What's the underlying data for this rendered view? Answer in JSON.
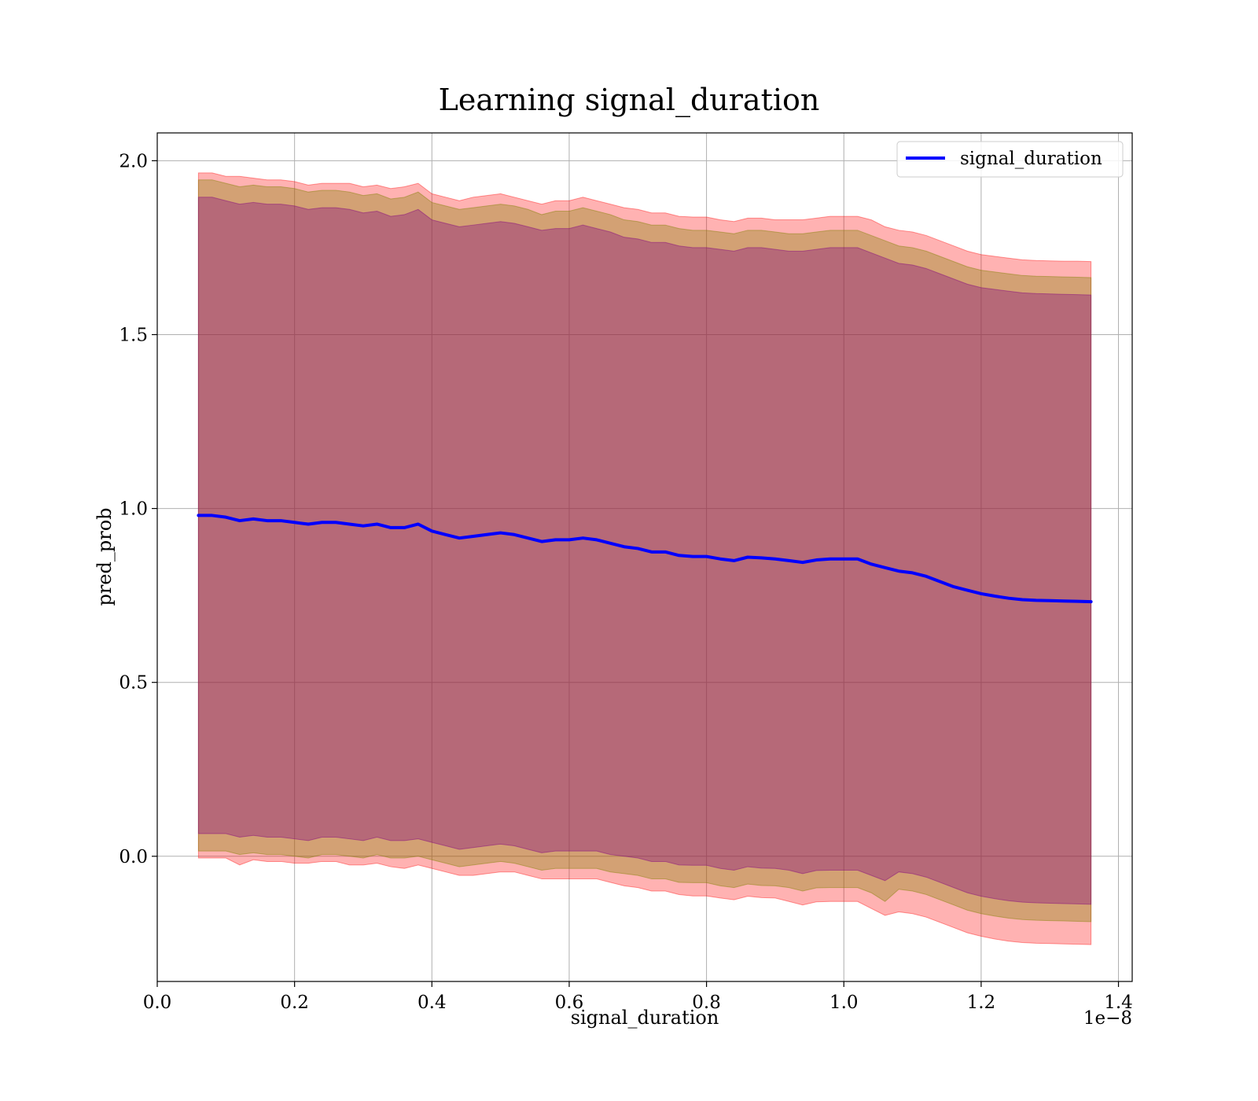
{
  "chart_data": {
    "type": "line",
    "title": "Learning signal_duration",
    "xlabel": "signal_duration",
    "ylabel": "pred_prob",
    "x_offset_label": "1e−8",
    "xlim": [
      0.0,
      1.42
    ],
    "ylim": [
      -0.36,
      2.08
    ],
    "x_ticks": [
      0.0,
      0.2,
      0.4,
      0.6,
      0.8,
      1.0,
      1.2,
      1.4
    ],
    "x_tick_labels": [
      "0.0",
      "0.2",
      "0.4",
      "0.6",
      "0.8",
      "1.0",
      "1.2",
      "1.4"
    ],
    "y_ticks": [
      0.0,
      0.5,
      1.0,
      1.5,
      2.0
    ],
    "y_tick_labels": [
      "0.0",
      "0.5",
      "1.0",
      "1.5",
      "2.0"
    ],
    "grid": true,
    "legend_position": "top-right",
    "series": [
      {
        "name": "signal_duration",
        "color": "#0000ff",
        "x": [
          0.06,
          0.08,
          0.1,
          0.12,
          0.14,
          0.16,
          0.18,
          0.2,
          0.22,
          0.24,
          0.26,
          0.28,
          0.3,
          0.32,
          0.34,
          0.36,
          0.38,
          0.4,
          0.42,
          0.44,
          0.46,
          0.48,
          0.5,
          0.52,
          0.54,
          0.56,
          0.58,
          0.6,
          0.62,
          0.64,
          0.66,
          0.68,
          0.7,
          0.72,
          0.74,
          0.76,
          0.78,
          0.8,
          0.82,
          0.84,
          0.86,
          0.88,
          0.9,
          0.92,
          0.94,
          0.96,
          0.98,
          1.0,
          1.02,
          1.04,
          1.06,
          1.08,
          1.1,
          1.12,
          1.14,
          1.16,
          1.18,
          1.2,
          1.22,
          1.24,
          1.26,
          1.28,
          1.3,
          1.32,
          1.34,
          1.36
        ],
        "y": [
          0.98,
          0.98,
          0.975,
          0.965,
          0.97,
          0.965,
          0.965,
          0.96,
          0.955,
          0.96,
          0.96,
          0.955,
          0.95,
          0.955,
          0.945,
          0.945,
          0.955,
          0.935,
          0.925,
          0.915,
          0.92,
          0.925,
          0.93,
          0.925,
          0.915,
          0.905,
          0.91,
          0.91,
          0.915,
          0.91,
          0.9,
          0.89,
          0.885,
          0.875,
          0.875,
          0.865,
          0.862,
          0.862,
          0.855,
          0.85,
          0.86,
          0.858,
          0.855,
          0.85,
          0.845,
          0.852,
          0.855,
          0.855,
          0.855,
          0.84,
          0.83,
          0.82,
          0.815,
          0.805,
          0.79,
          0.775,
          0.765,
          0.755,
          0.748,
          0.742,
          0.738,
          0.736,
          0.735,
          0.734,
          0.733,
          0.732
        ]
      }
    ],
    "bands": [
      {
        "color": "#ff0000",
        "opacity": 0.3,
        "upper": [
          1.965,
          1.965,
          1.955,
          1.955,
          1.95,
          1.945,
          1.945,
          1.94,
          1.93,
          1.935,
          1.935,
          1.935,
          1.925,
          1.93,
          1.92,
          1.925,
          1.935,
          1.905,
          1.895,
          1.885,
          1.895,
          1.9,
          1.905,
          1.895,
          1.885,
          1.875,
          1.885,
          1.885,
          1.895,
          1.885,
          1.875,
          1.865,
          1.86,
          1.85,
          1.85,
          1.84,
          1.838,
          1.838,
          1.83,
          1.825,
          1.835,
          1.835,
          1.83,
          1.83,
          1.83,
          1.835,
          1.84,
          1.84,
          1.84,
          1.83,
          1.81,
          1.8,
          1.795,
          1.785,
          1.77,
          1.755,
          1.74,
          1.73,
          1.725,
          1.72,
          1.715,
          1.713,
          1.712,
          1.711,
          1.711,
          1.71
        ],
        "lower": [
          -0.005,
          -0.005,
          -0.005,
          -0.025,
          -0.01,
          -0.015,
          -0.015,
          -0.02,
          -0.02,
          -0.015,
          -0.015,
          -0.025,
          -0.025,
          -0.02,
          -0.03,
          -0.035,
          -0.025,
          -0.035,
          -0.045,
          -0.055,
          -0.055,
          -0.05,
          -0.045,
          -0.045,
          -0.055,
          -0.065,
          -0.065,
          -0.065,
          -0.065,
          -0.065,
          -0.075,
          -0.085,
          -0.09,
          -0.1,
          -0.1,
          -0.11,
          -0.114,
          -0.114,
          -0.12,
          -0.125,
          -0.115,
          -0.119,
          -0.12,
          -0.13,
          -0.14,
          -0.131,
          -0.13,
          -0.13,
          -0.13,
          -0.15,
          -0.17,
          -0.16,
          -0.165,
          -0.175,
          -0.19,
          -0.205,
          -0.22,
          -0.23,
          -0.238,
          -0.244,
          -0.248,
          -0.25,
          -0.251,
          -0.252,
          -0.253,
          -0.254
        ]
      },
      {
        "color": "#808000",
        "opacity": 0.35,
        "upper": [
          1.945,
          1.945,
          1.935,
          1.925,
          1.93,
          1.925,
          1.925,
          1.92,
          1.91,
          1.915,
          1.915,
          1.91,
          1.9,
          1.905,
          1.89,
          1.895,
          1.91,
          1.88,
          1.87,
          1.86,
          1.865,
          1.87,
          1.875,
          1.87,
          1.86,
          1.845,
          1.855,
          1.855,
          1.865,
          1.855,
          1.845,
          1.83,
          1.825,
          1.815,
          1.815,
          1.805,
          1.8,
          1.8,
          1.795,
          1.79,
          1.8,
          1.8,
          1.795,
          1.79,
          1.79,
          1.795,
          1.8,
          1.8,
          1.8,
          1.785,
          1.77,
          1.755,
          1.75,
          1.74,
          1.725,
          1.71,
          1.695,
          1.685,
          1.68,
          1.675,
          1.67,
          1.668,
          1.667,
          1.666,
          1.665,
          1.664
        ],
        "lower": [
          0.015,
          0.015,
          0.015,
          0.005,
          0.01,
          0.005,
          0.005,
          0.0,
          -0.005,
          0.005,
          0.005,
          0.0,
          -0.005,
          0.005,
          -0.005,
          -0.005,
          0.0,
          -0.01,
          -0.02,
          -0.03,
          -0.025,
          -0.02,
          -0.015,
          -0.02,
          -0.03,
          -0.04,
          -0.035,
          -0.035,
          -0.035,
          -0.035,
          -0.045,
          -0.05,
          -0.055,
          -0.065,
          -0.065,
          -0.075,
          -0.076,
          -0.076,
          -0.085,
          -0.09,
          -0.08,
          -0.084,
          -0.085,
          -0.09,
          -0.1,
          -0.091,
          -0.09,
          -0.09,
          -0.09,
          -0.105,
          -0.13,
          -0.095,
          -0.1,
          -0.11,
          -0.125,
          -0.14,
          -0.155,
          -0.165,
          -0.172,
          -0.178,
          -0.182,
          -0.184,
          -0.185,
          -0.186,
          -0.187,
          -0.188
        ]
      },
      {
        "color": "#800080",
        "opacity": 0.35,
        "upper": [
          1.895,
          1.895,
          1.885,
          1.875,
          1.88,
          1.875,
          1.875,
          1.87,
          1.86,
          1.865,
          1.865,
          1.86,
          1.85,
          1.855,
          1.84,
          1.845,
          1.86,
          1.83,
          1.82,
          1.81,
          1.815,
          1.82,
          1.825,
          1.82,
          1.81,
          1.8,
          1.805,
          1.805,
          1.815,
          1.805,
          1.795,
          1.78,
          1.775,
          1.765,
          1.765,
          1.755,
          1.75,
          1.75,
          1.745,
          1.74,
          1.75,
          1.75,
          1.745,
          1.74,
          1.74,
          1.745,
          1.75,
          1.75,
          1.75,
          1.735,
          1.72,
          1.705,
          1.7,
          1.69,
          1.675,
          1.66,
          1.645,
          1.635,
          1.63,
          1.625,
          1.62,
          1.618,
          1.617,
          1.616,
          1.615,
          1.614
        ],
        "lower": [
          0.065,
          0.065,
          0.065,
          0.055,
          0.06,
          0.055,
          0.055,
          0.05,
          0.045,
          0.055,
          0.055,
          0.05,
          0.045,
          0.055,
          0.045,
          0.045,
          0.05,
          0.04,
          0.03,
          0.02,
          0.025,
          0.03,
          0.035,
          0.03,
          0.02,
          0.01,
          0.015,
          0.015,
          0.015,
          0.015,
          0.005,
          0.0,
          -0.005,
          -0.015,
          -0.015,
          -0.025,
          -0.026,
          -0.026,
          -0.035,
          -0.04,
          -0.03,
          -0.034,
          -0.035,
          -0.04,
          -0.05,
          -0.041,
          -0.04,
          -0.04,
          -0.04,
          -0.055,
          -0.07,
          -0.045,
          -0.05,
          -0.06,
          -0.075,
          -0.09,
          -0.105,
          -0.115,
          -0.122,
          -0.128,
          -0.132,
          -0.134,
          -0.135,
          -0.136,
          -0.137,
          -0.138
        ]
      }
    ]
  }
}
